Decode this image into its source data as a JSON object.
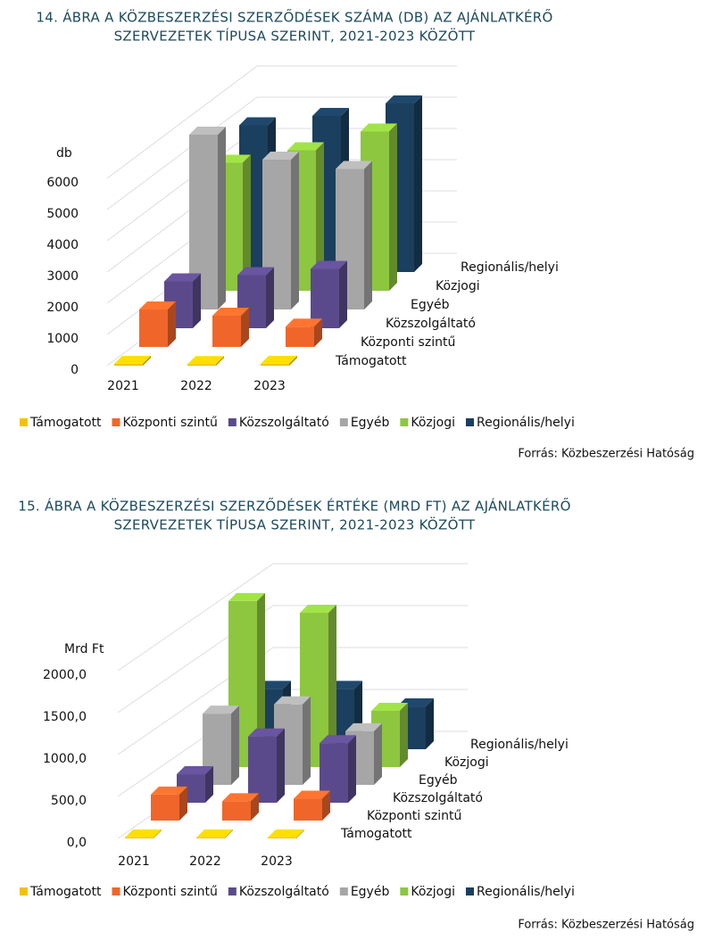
{
  "chart_data": [
    {
      "type": "bar3d",
      "title": [
        "14. ÁBRA A KÖZBESZERZÉSI SZERZŐDÉSEK SZÁMA (DB) AZ AJÁNLATKÉRŐ",
        "SZERVEZETEK TÍPUSA SZERINT, 2021-2023 KÖZÖTT"
      ],
      "y_label": "db",
      "categories": [
        "2021",
        "2022",
        "2023"
      ],
      "series": [
        {
          "name": "Támogatott",
          "color": "#f2c200",
          "values": [
            60,
            50,
            60
          ]
        },
        {
          "name": "Központi szintű",
          "color": "#f0662a",
          "values": [
            1200,
            1000,
            650
          ]
        },
        {
          "name": "Közszolgáltató",
          "color": "#5b4a8b",
          "values": [
            1500,
            1700,
            1900
          ]
        },
        {
          "name": "Egyéb",
          "color": "#a6a6a6",
          "values": [
            5600,
            4800,
            4500
          ]
        },
        {
          "name": "Közjogi",
          "color": "#8dc63f",
          "values": [
            4100,
            4500,
            5100
          ]
        },
        {
          "name": "Regionális/helyi",
          "color": "#1b3f5e",
          "values": [
            4700,
            5000,
            5400
          ]
        }
      ],
      "ylim": [
        0,
        6000
      ],
      "yticks": [
        0,
        1000,
        2000,
        3000,
        4000,
        5000,
        6000
      ],
      "grid": true,
      "source": "Forrás: Közbeszerzési Hatóság"
    },
    {
      "type": "bar3d",
      "title": [
        "15. ÁBRA A KÖZBESZERZÉSI SZERZŐDÉSEK ÉRTÉKE (MRD FT) AZ AJÁNLATKÉRŐ",
        "SZERVEZETEK TÍPUSA SZERINT, 2021-2023 KÖZÖTT"
      ],
      "y_label": "Mrd Ft",
      "categories": [
        "2021",
        "2022",
        "2023"
      ],
      "series": [
        {
          "name": "Támogatott",
          "color": "#f2c200",
          "values": [
            10,
            10,
            10
          ]
        },
        {
          "name": "Központi szintű",
          "color": "#f0662a",
          "values": [
            310,
            230,
            260
          ]
        },
        {
          "name": "Közszolgáltató",
          "color": "#5b4a8b",
          "values": [
            340,
            790,
            710
          ]
        },
        {
          "name": "Egyéb",
          "color": "#a6a6a6",
          "values": [
            850,
            960,
            640
          ]
        },
        {
          "name": "Közjogi",
          "color": "#8dc63f",
          "values": [
            1980,
            1840,
            670
          ]
        },
        {
          "name": "Regionális/helyi",
          "color": "#1b3f5e",
          "values": [
            720,
            720,
            510
          ]
        }
      ],
      "ylim": [
        0,
        2000
      ],
      "yticks": [
        {
          "value": 0,
          "label": "0,0"
        },
        {
          "value": 500,
          "label": "500,0"
        },
        {
          "value": 1000,
          "label": "1000,0"
        },
        {
          "value": 1500,
          "label": "1500,0"
        },
        {
          "value": 2000,
          "label": "2000,0"
        }
      ],
      "grid": true,
      "source": "Forrás: Közbeszerzési Hatóság"
    }
  ]
}
